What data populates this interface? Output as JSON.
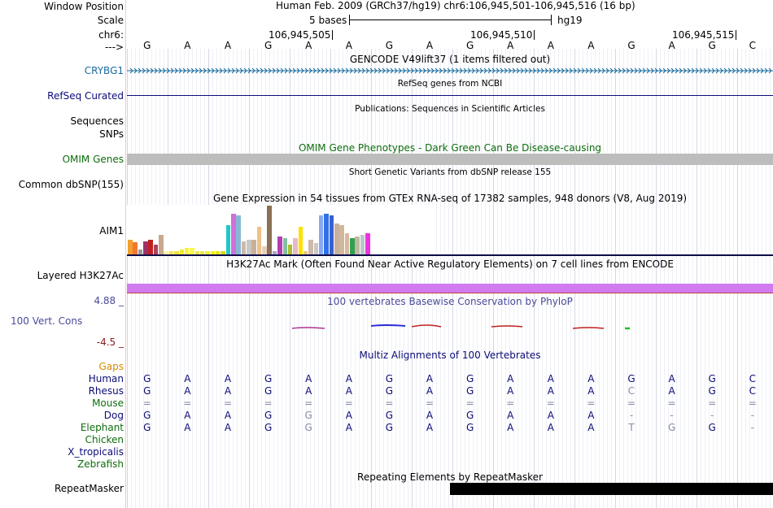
{
  "header": {
    "window_position_label": "Window Position",
    "scale_label": "Scale",
    "chr_label": "chr6:",
    "arrow_label": "--->",
    "assembly_text": "Human Feb. 2009 (GRCh37/hg19)   chr6:106,945,501-106,945,516 (16 bp)",
    "scale_text": "5 bases",
    "scale_db": "hg19",
    "coords": [
      "106,945,505",
      "106,945,510",
      "106,945,515"
    ]
  },
  "sequence": [
    "G",
    "A",
    "A",
    "G",
    "A",
    "A",
    "G",
    "A",
    "G",
    "A",
    "A",
    "A",
    "G",
    "A",
    "G",
    "C"
  ],
  "tracks": {
    "gencode_title": "GENCODE V49lift37 (1 items filtered out)",
    "gencode_gene": "CRYBG1",
    "refseq_title": "RefSeq genes from NCBI",
    "refseq_label": "RefSeq Curated",
    "pubs_title": "Publications: Sequences in Scientific Articles",
    "pubs_label_1": "Sequences",
    "pubs_label_2": "SNPs",
    "omim_title": "OMIM Gene Phenotypes - Dark Green Can Be Disease-causing",
    "omim_label": "OMIM Genes",
    "dbsnp_title": "Short Genetic Variants from dbSNP release 155",
    "dbsnp_label": "Common dbSNP(155)",
    "gtex_title": "Gene Expression in 54 tissues from GTEx RNA-seq of 17382 samples, 948 donors (V8, Aug 2019)",
    "gtex_label": "AIM1",
    "h3k_title": "H3K27Ac Mark (Often Found Near Active Regulatory Elements) on 7 cell lines from ENCODE",
    "h3k_label": "Layered H3K27Ac",
    "phylop_title": "100 vertebrates Basewise Conservation by PhyloP",
    "phylop_label": "100 Vert. Cons",
    "phylop_max": "4.88 _",
    "phylop_min": "-4.5 _",
    "multiz_title": "Multiz Alignments of 100 Vertebrates",
    "gaps_label": "Gaps",
    "repeat_title": "Repeating Elements by RepeatMasker",
    "repeat_label": "RepeatMasker"
  },
  "alignment": [
    {
      "species": "Human",
      "bases": [
        "G",
        "A",
        "A",
        "G",
        "A",
        "A",
        "G",
        "A",
        "G",
        "A",
        "A",
        "A",
        "G",
        "A",
        "G",
        "C"
      ]
    },
    {
      "species": "Rhesus",
      "bases": [
        "G",
        "A",
        "A",
        "G",
        "A",
        "A",
        "G",
        "A",
        "G",
        "A",
        "A",
        "A",
        "C",
        "A",
        "G",
        "C"
      ]
    },
    {
      "species": "Mouse",
      "bases": [
        "=",
        "=",
        "=",
        "=",
        "=",
        "=",
        "=",
        "=",
        "=",
        "=",
        "=",
        "=",
        "=",
        "=",
        "=",
        "="
      ]
    },
    {
      "species": "Dog",
      "bases": [
        "G",
        "A",
        "A",
        "G",
        "G",
        "A",
        "G",
        "A",
        "G",
        "A",
        "A",
        "A",
        "-",
        "-",
        "-",
        "-"
      ]
    },
    {
      "species": "Elephant",
      "bases": [
        "G",
        "A",
        "A",
        "G",
        "G",
        "A",
        "G",
        "A",
        "G",
        "A",
        "A",
        "A",
        "T",
        "G",
        "G",
        "-"
      ]
    },
    {
      "species": "Chicken",
      "bases": []
    },
    {
      "species": "X_tropicalis",
      "bases": []
    },
    {
      "species": "Zebrafish",
      "bases": []
    }
  ],
  "gtex_values": [
    18,
    15,
    6,
    16,
    18,
    12,
    24,
    4,
    4,
    4,
    6,
    8,
    8,
    4,
    4,
    4,
    4,
    4,
    4,
    36,
    50,
    48,
    16,
    18,
    18,
    34,
    10,
    60,
    4,
    22,
    20,
    12,
    20,
    34,
    4,
    18,
    14,
    48,
    50,
    48,
    38,
    36,
    26,
    20,
    22,
    24,
    26
  ],
  "colors": {
    "label_blue": "#0c0c78",
    "gencode": "#1a6b9e",
    "omim_green": "#0d6d0d",
    "gaps_orange": "#d88a00",
    "phylop_blue": "#4a4a9a",
    "phylop_red": "#8a1a1a",
    "h3k": "#d27bf0",
    "repeat": "#000000"
  }
}
